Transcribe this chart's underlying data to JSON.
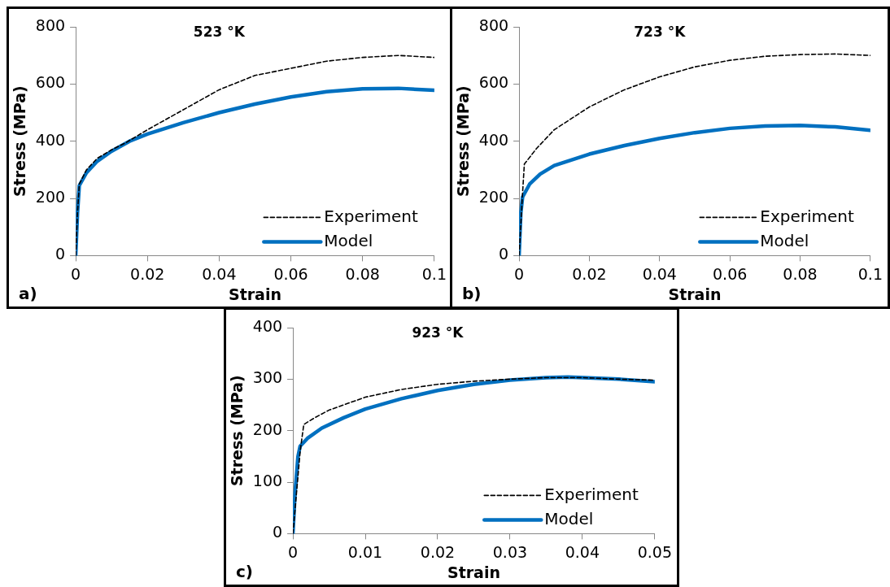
{
  "chart_data": [
    {
      "type": "line",
      "title": "523 °K",
      "xlabel": "Strain",
      "ylabel": "Stress (MPa)",
      "xlim": [
        0,
        0.1
      ],
      "xticks": [
        0,
        0.02,
        0.04,
        0.06,
        0.08,
        0.1
      ],
      "ylim": [
        0,
        800
      ],
      "yticks": [
        0,
        200,
        400,
        600,
        800
      ],
      "grid": false,
      "legend": "bottom right",
      "marker": "none",
      "annotations": [
        "a)"
      ],
      "series": [
        {
          "name": "Experiment",
          "color": "#000000",
          "line_style": "dashed",
          "x": [
            0,
            0.0005,
            0.001,
            0.003,
            0.006,
            0.01,
            0.014,
            0.02,
            0.03,
            0.04,
            0.05,
            0.06,
            0.07,
            0.08,
            0.09,
            0.1
          ],
          "values": [
            0,
            150,
            250,
            300,
            340,
            370,
            395,
            440,
            510,
            580,
            630,
            655,
            680,
            693,
            700,
            693
          ]
        },
        {
          "name": "Model",
          "color": "#0070c0",
          "line_style": "solid",
          "x": [
            0,
            0.0005,
            0.001,
            0.003,
            0.006,
            0.01,
            0.015,
            0.02,
            0.03,
            0.04,
            0.05,
            0.06,
            0.07,
            0.08,
            0.09,
            0.1
          ],
          "values": [
            0,
            150,
            245,
            290,
            330,
            365,
            400,
            425,
            465,
            500,
            530,
            555,
            573,
            583,
            585,
            578
          ]
        }
      ]
    },
    {
      "type": "line",
      "title": "723 °K",
      "xlabel": "Strain",
      "ylabel": "Stress (MPa)",
      "xlim": [
        0,
        0.1
      ],
      "xticks": [
        0,
        0.02,
        0.04,
        0.06,
        0.08,
        0.1
      ],
      "ylim": [
        0,
        800
      ],
      "yticks": [
        0,
        200,
        400,
        600,
        800
      ],
      "grid": false,
      "legend": "bottom right",
      "marker": "none",
      "annotations": [
        "b)"
      ],
      "series": [
        {
          "name": "Experiment",
          "color": "#000000",
          "line_style": "dashed",
          "x": [
            0,
            0.001,
            0.0015,
            0.005,
            0.01,
            0.02,
            0.03,
            0.04,
            0.05,
            0.06,
            0.07,
            0.08,
            0.09,
            0.1
          ],
          "values": [
            0,
            220,
            320,
            375,
            440,
            520,
            580,
            625,
            660,
            683,
            697,
            703,
            705,
            700
          ]
        },
        {
          "name": "Model",
          "color": "#0070c0",
          "line_style": "solid",
          "x": [
            0,
            0.0005,
            0.001,
            0.003,
            0.006,
            0.01,
            0.02,
            0.03,
            0.04,
            0.05,
            0.06,
            0.07,
            0.08,
            0.09,
            0.1
          ],
          "values": [
            0,
            150,
            205,
            250,
            285,
            315,
            355,
            385,
            410,
            430,
            445,
            453,
            455,
            450,
            438
          ]
        }
      ]
    },
    {
      "type": "line",
      "title": "923 °K",
      "xlabel": "Strain",
      "ylabel": "Stress (MPa)",
      "xlim": [
        0,
        0.05
      ],
      "xticks": [
        0,
        0.01,
        0.02,
        0.03,
        0.04,
        0.05
      ],
      "ylim": [
        0,
        400
      ],
      "yticks": [
        0,
        100,
        200,
        300,
        400
      ],
      "grid": false,
      "legend": "bottom right",
      "marker": "none",
      "annotations": [
        "c)"
      ],
      "series": [
        {
          "name": "Experiment",
          "color": "#000000",
          "line_style": "dashed",
          "x": [
            0,
            0.0005,
            0.001,
            0.0015,
            0.003,
            0.005,
            0.01,
            0.015,
            0.02,
            0.025,
            0.03,
            0.035,
            0.04,
            0.045,
            0.05
          ],
          "values": [
            0,
            80,
            160,
            212,
            225,
            240,
            265,
            280,
            290,
            296,
            300,
            303,
            303,
            300,
            298
          ]
        },
        {
          "name": "Model",
          "color": "#0070c0",
          "line_style": "solid",
          "x": [
            0,
            0.0003,
            0.0007,
            0.001,
            0.002,
            0.004,
            0.007,
            0.01,
            0.015,
            0.02,
            0.025,
            0.03,
            0.035,
            0.038,
            0.045,
            0.05
          ],
          "values": [
            0,
            80,
            150,
            170,
            185,
            205,
            225,
            242,
            262,
            278,
            290,
            298,
            303,
            304,
            300,
            295
          ]
        }
      ]
    }
  ]
}
